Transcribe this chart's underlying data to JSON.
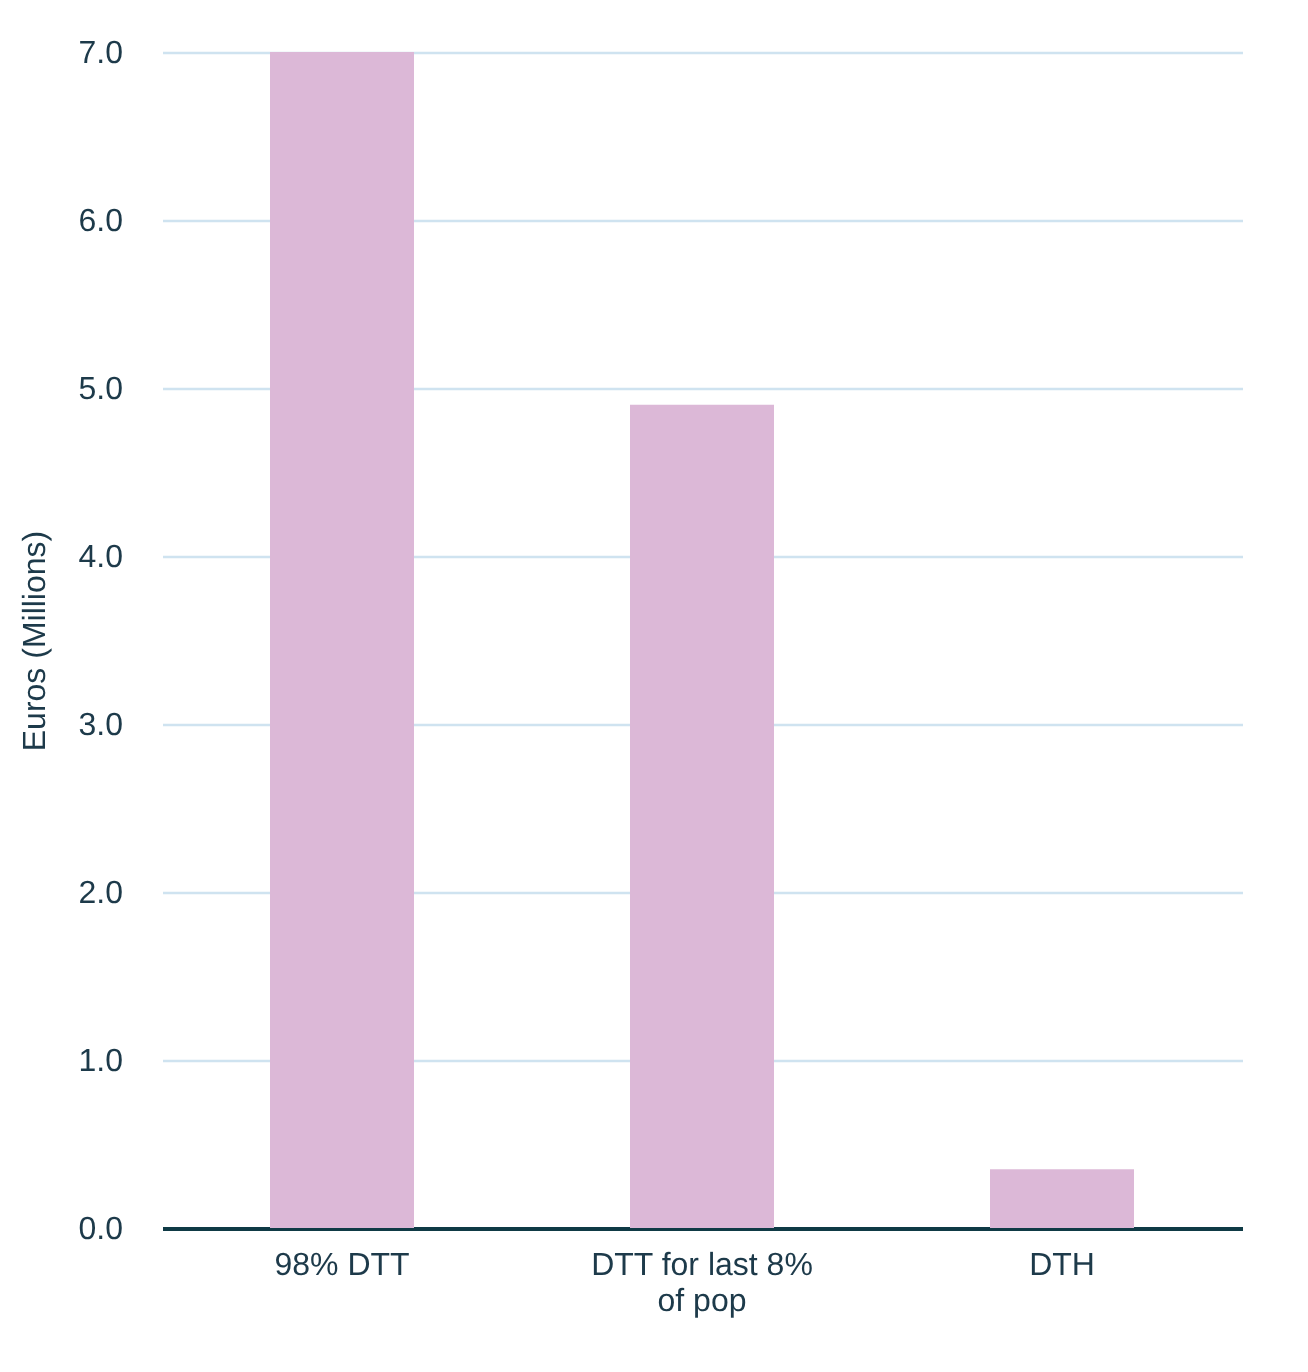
{
  "chart_data": {
    "type": "bar",
    "ylabel": "Euros (Millions)",
    "categories": [
      "98% DTT",
      "DTT for last 8% of pop",
      "DTH"
    ],
    "values": [
      7.0,
      4.9,
      0.35
    ],
    "color": "#dcb8d7",
    "ylim": [
      0,
      7
    ],
    "yticks": [
      {
        "value": 0,
        "label": "0.0"
      },
      {
        "value": 1,
        "label": "1.0"
      },
      {
        "value": 2,
        "label": "2.0"
      },
      {
        "value": 3,
        "label": "3.0"
      },
      {
        "value": 4,
        "label": "4.0"
      },
      {
        "value": 5,
        "label": "5.0"
      },
      {
        "value": 6,
        "label": "6.0"
      },
      {
        "value": 7,
        "label": "7.0"
      }
    ],
    "grid": "y"
  }
}
